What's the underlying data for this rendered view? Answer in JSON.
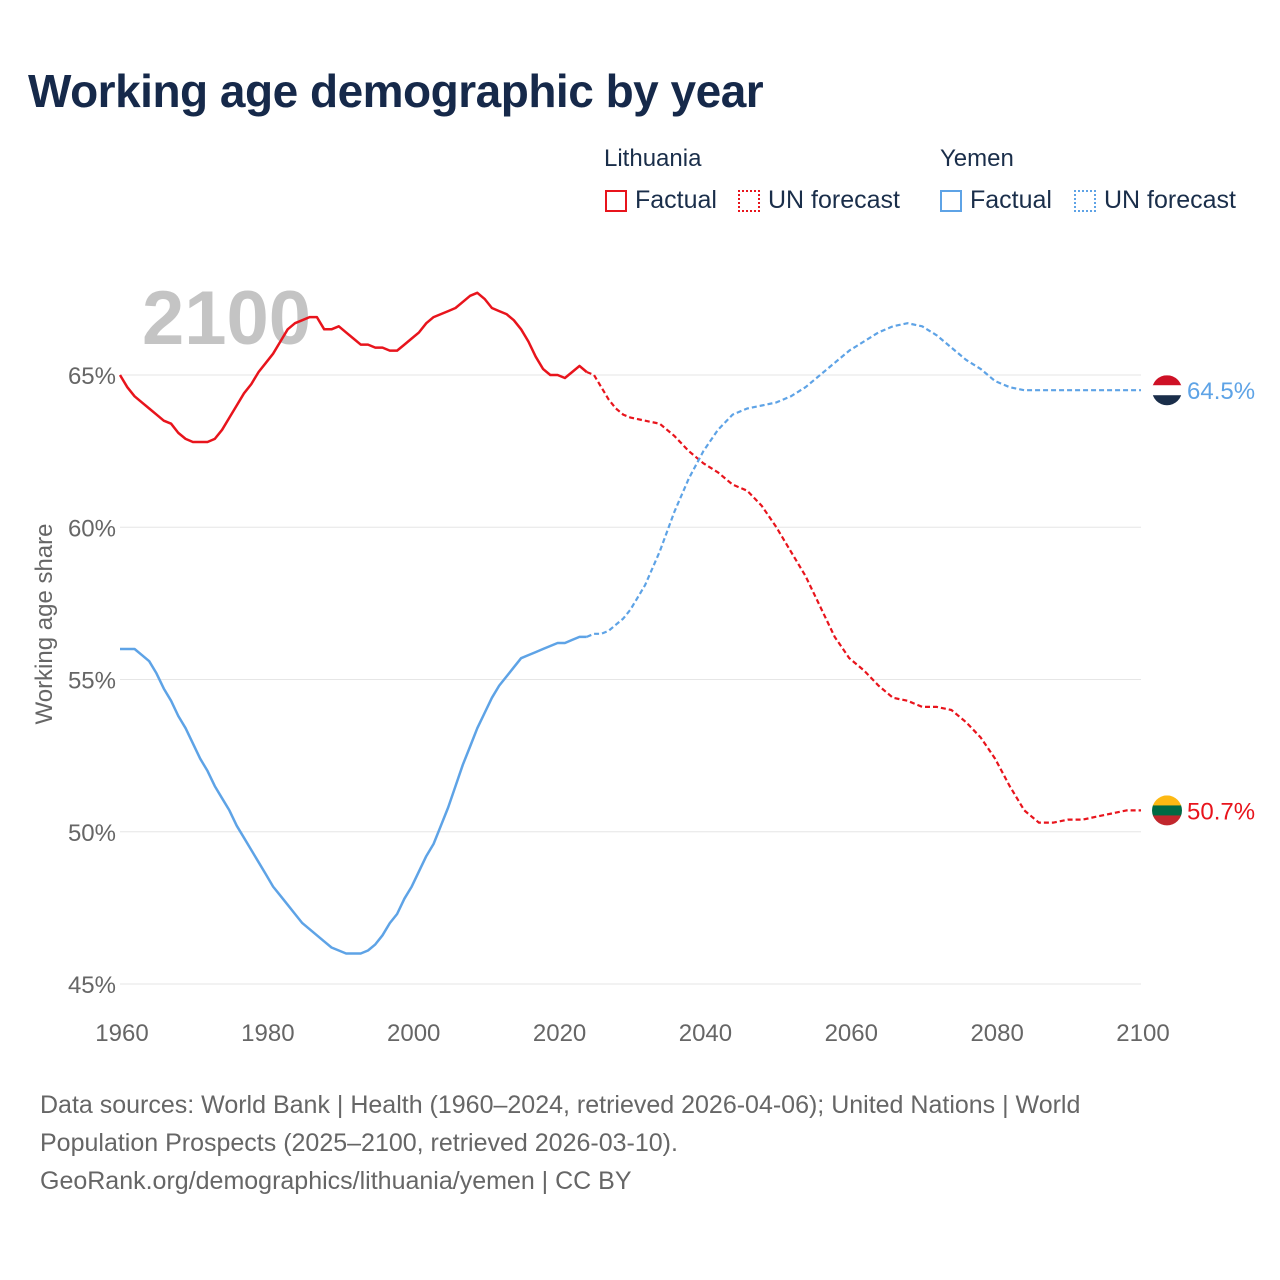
{
  "title": "Working age demographic by year",
  "legend": {
    "groups": [
      {
        "name": "Lithuania",
        "factual_label": "Factual",
        "forecast_label": "UN forecast",
        "color": "#e8141c"
      },
      {
        "name": "Yemen",
        "factual_label": "Factual",
        "forecast_label": "UN forecast",
        "color": "#5ea3e6"
      }
    ]
  },
  "year_watermark": "2100",
  "footer": {
    "line1": "Data sources: World Bank | Health (1960–2024, retrieved 2026-04-06); United Nations | World",
    "line2": "Population Prospects (2025–2100, retrieved 2026-03-10).",
    "line3": "GeoRank.org/demographics/lithuania/yemen | CC BY"
  },
  "chart_data": {
    "type": "line",
    "title": "Working age demographic by year",
    "xlabel": "",
    "ylabel": "Working age share",
    "xlim": [
      1960,
      2100
    ],
    "ylim": [
      45,
      68
    ],
    "x_ticks": [
      1960,
      1980,
      2000,
      2020,
      2040,
      2060,
      2080,
      2100
    ],
    "x_tick_labels": [
      "1960",
      "1980",
      "2000",
      "2020",
      "2040",
      "2060",
      "2080",
      "2100"
    ],
    "y_ticks": [
      45,
      50,
      55,
      60,
      65
    ],
    "y_tick_labels": [
      "45%",
      "50%",
      "55%",
      "60%",
      "65%"
    ],
    "factual_end_year": 2024,
    "series": [
      {
        "name": "Lithuania",
        "color": "#e8141c",
        "end_label": "50.7%",
        "flag_colors": [
          "#fdb913",
          "#006a44",
          "#c1272d"
        ],
        "x": [
          1960,
          1961,
          1962,
          1963,
          1964,
          1965,
          1966,
          1967,
          1968,
          1969,
          1970,
          1971,
          1972,
          1973,
          1974,
          1975,
          1976,
          1977,
          1978,
          1979,
          1980,
          1981,
          1982,
          1983,
          1984,
          1985,
          1986,
          1987,
          1988,
          1989,
          1990,
          1991,
          1992,
          1993,
          1994,
          1995,
          1996,
          1997,
          1998,
          1999,
          2000,
          2001,
          2002,
          2003,
          2004,
          2005,
          2006,
          2007,
          2008,
          2009,
          2010,
          2011,
          2012,
          2013,
          2014,
          2015,
          2016,
          2017,
          2018,
          2019,
          2020,
          2021,
          2022,
          2023,
          2024,
          2025,
          2026,
          2027,
          2028,
          2029,
          2030,
          2032,
          2034,
          2036,
          2038,
          2040,
          2042,
          2044,
          2046,
          2048,
          2050,
          2052,
          2054,
          2056,
          2058,
          2060,
          2062,
          2064,
          2066,
          2068,
          2070,
          2072,
          2074,
          2076,
          2078,
          2080,
          2082,
          2084,
          2086,
          2088,
          2090,
          2092,
          2094,
          2096,
          2098,
          2100
        ],
        "y": [
          65.0,
          64.6,
          64.3,
          64.1,
          63.9,
          63.7,
          63.5,
          63.4,
          63.1,
          62.9,
          62.8,
          62.8,
          62.8,
          62.9,
          63.2,
          63.6,
          64.0,
          64.4,
          64.7,
          65.1,
          65.4,
          65.7,
          66.1,
          66.5,
          66.7,
          66.8,
          66.9,
          66.9,
          66.5,
          66.5,
          66.6,
          66.4,
          66.2,
          66.0,
          66.0,
          65.9,
          65.9,
          65.8,
          65.8,
          66.0,
          66.2,
          66.4,
          66.7,
          66.9,
          67.0,
          67.1,
          67.2,
          67.4,
          67.6,
          67.7,
          67.5,
          67.2,
          67.1,
          67.0,
          66.8,
          66.5,
          66.1,
          65.6,
          65.2,
          65.0,
          65.0,
          64.9,
          65.1,
          65.3,
          65.1,
          65.0,
          64.6,
          64.2,
          63.9,
          63.7,
          63.6,
          63.5,
          63.4,
          63.0,
          62.5,
          62.1,
          61.8,
          61.4,
          61.2,
          60.7,
          60.0,
          59.2,
          58.4,
          57.4,
          56.4,
          55.7,
          55.3,
          54.8,
          54.4,
          54.3,
          54.1,
          54.1,
          54.0,
          53.6,
          53.1,
          52.4,
          51.5,
          50.7,
          50.3,
          50.3,
          50.4,
          50.4,
          50.5,
          50.6,
          50.7,
          50.7
        ]
      },
      {
        "name": "Yemen",
        "color": "#5ea3e6",
        "end_label": "64.5%",
        "flag_colors": [
          "#ce1126",
          "#ffffff",
          "#1a2e4a"
        ],
        "x": [
          1960,
          1961,
          1962,
          1963,
          1964,
          1965,
          1966,
          1967,
          1968,
          1969,
          1970,
          1971,
          1972,
          1973,
          1974,
          1975,
          1976,
          1977,
          1978,
          1979,
          1980,
          1981,
          1982,
          1983,
          1984,
          1985,
          1986,
          1987,
          1988,
          1989,
          1990,
          1991,
          1992,
          1993,
          1994,
          1995,
          1996,
          1997,
          1998,
          1999,
          2000,
          2001,
          2002,
          2003,
          2004,
          2005,
          2006,
          2007,
          2008,
          2009,
          2010,
          2011,
          2012,
          2013,
          2014,
          2015,
          2016,
          2017,
          2018,
          2019,
          2020,
          2021,
          2022,
          2023,
          2024,
          2025,
          2026,
          2027,
          2028,
          2029,
          2030,
          2032,
          2034,
          2036,
          2038,
          2040,
          2042,
          2044,
          2046,
          2048,
          2050,
          2052,
          2054,
          2056,
          2058,
          2060,
          2062,
          2064,
          2066,
          2068,
          2070,
          2072,
          2074,
          2076,
          2078,
          2080,
          2082,
          2084,
          2086,
          2088,
          2090,
          2092,
          2094,
          2096,
          2098,
          2100
        ],
        "y": [
          56.0,
          56.0,
          56.0,
          55.8,
          55.6,
          55.2,
          54.7,
          54.3,
          53.8,
          53.4,
          52.9,
          52.4,
          52.0,
          51.5,
          51.1,
          50.7,
          50.2,
          49.8,
          49.4,
          49.0,
          48.6,
          48.2,
          47.9,
          47.6,
          47.3,
          47.0,
          46.8,
          46.6,
          46.4,
          46.2,
          46.1,
          46.0,
          46.0,
          46.0,
          46.1,
          46.3,
          46.6,
          47.0,
          47.3,
          47.8,
          48.2,
          48.7,
          49.2,
          49.6,
          50.2,
          50.8,
          51.5,
          52.2,
          52.8,
          53.4,
          53.9,
          54.4,
          54.8,
          55.1,
          55.4,
          55.7,
          55.8,
          55.9,
          56.0,
          56.1,
          56.2,
          56.2,
          56.3,
          56.4,
          56.4,
          56.5,
          56.5,
          56.6,
          56.8,
          57.0,
          57.3,
          58.1,
          59.2,
          60.5,
          61.6,
          62.5,
          63.2,
          63.7,
          63.9,
          64.0,
          64.1,
          64.3,
          64.6,
          65.0,
          65.4,
          65.8,
          66.1,
          66.4,
          66.6,
          66.7,
          66.6,
          66.3,
          65.9,
          65.5,
          65.2,
          64.8,
          64.6,
          64.5,
          64.5,
          64.5,
          64.5,
          64.5,
          64.5,
          64.5,
          64.5,
          64.5
        ]
      }
    ]
  }
}
